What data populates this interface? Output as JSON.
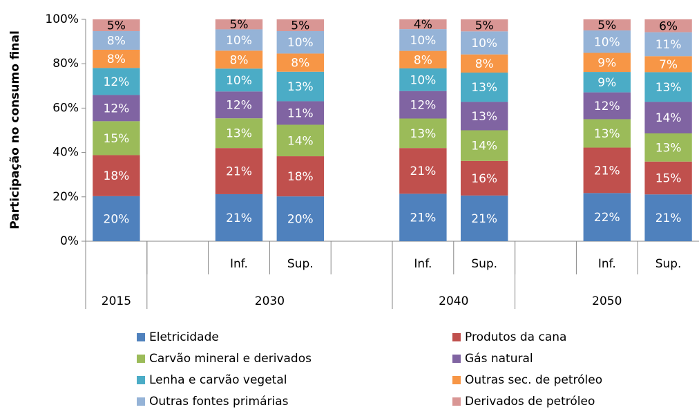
{
  "chart_data": {
    "type": "stacked_bar",
    "y_label": "Participação no consumo final",
    "ylim": [
      0,
      100
    ],
    "yticks": [
      {
        "value": 0,
        "label": "0%"
      },
      {
        "value": 20,
        "label": "20%"
      },
      {
        "value": 40,
        "label": "40%"
      },
      {
        "value": 60,
        "label": "60%"
      },
      {
        "value": 80,
        "label": "80%"
      },
      {
        "value": 100,
        "label": "100%"
      }
    ],
    "categories": [
      null,
      null,
      "Inf.",
      "Sup.",
      null,
      "Inf.",
      "Sup.",
      null,
      "Inf.",
      "Sup."
    ],
    "groups": [
      {
        "label": "2015",
        "size": 1
      },
      {
        "label": "2030",
        "size": 4
      },
      {
        "label": "2040",
        "size": 2
      },
      {
        "label": "2050",
        "size": 3
      }
    ],
    "series": [
      {
        "name": "Eletricidade",
        "color": "#4f81bd",
        "values": [
          20.3,
          null,
          21.2,
          20.2,
          null,
          21.4,
          20.6,
          null,
          21.7,
          21.1
        ],
        "value_labels": [
          "20%",
          null,
          "21%",
          "20%",
          null,
          "21%",
          "21%",
          null,
          "22%",
          "21%"
        ]
      },
      {
        "name": "Produtos da cana",
        "color": "#c0504d",
        "values": [
          18.5,
          null,
          20.8,
          18.1,
          null,
          20.6,
          15.6,
          null,
          20.5,
          14.8
        ],
        "value_labels": [
          "18%",
          null,
          "21%",
          "18%",
          null,
          "21%",
          "16%",
          null,
          "21%",
          "15%"
        ]
      },
      {
        "name": "Carvão mineral e derivados",
        "color": "#9bbb59",
        "values": [
          15.3,
          null,
          13.4,
          14.2,
          null,
          13.3,
          13.8,
          null,
          12.8,
          12.7
        ],
        "value_labels": [
          "15%",
          null,
          "13%",
          "14%",
          null,
          "13%",
          "14%",
          null,
          "13%",
          "13%"
        ]
      },
      {
        "name": "Gás natural",
        "color": "#8064a2",
        "values": [
          11.8,
          null,
          12.1,
          10.6,
          null,
          12.4,
          12.8,
          null,
          12.1,
          14.2
        ],
        "value_labels": [
          "12%",
          null,
          "12%",
          "11%",
          null,
          "12%",
          "13%",
          null,
          "12%",
          "14%"
        ]
      },
      {
        "name": "Lenha e carvão vegetal",
        "color": "#4bacc6",
        "values": [
          12.2,
          null,
          10.3,
          13.3,
          null,
          10.2,
          13.2,
          null,
          9.2,
          13.4
        ],
        "value_labels": [
          "12%",
          null,
          "10%",
          "13%",
          null,
          "10%",
          "13%",
          null,
          "9%",
          "13%"
        ]
      },
      {
        "name": "Outras sec. de petróleo",
        "color": "#f79646",
        "values": [
          8.2,
          null,
          8.1,
          8.2,
          null,
          7.9,
          8.2,
          null,
          8.6,
          7.2
        ],
        "value_labels": [
          "8%",
          null,
          "8%",
          "8%",
          null,
          "8%",
          "8%",
          null,
          "9%",
          "7%"
        ]
      },
      {
        "name": "Outras fontes primárias",
        "color": "#95b3d7",
        "values": [
          8.4,
          null,
          9.6,
          10.1,
          null,
          9.8,
          10.4,
          null,
          10.1,
          10.8
        ],
        "value_labels": [
          "8%",
          null,
          "10%",
          "10%",
          null,
          "10%",
          "10%",
          null,
          "10%",
          "11%"
        ]
      },
      {
        "name": "Derivados de petróleo",
        "color": "#d99694",
        "values": [
          5.3,
          null,
          4.5,
          5.3,
          null,
          4.4,
          5.4,
          null,
          5.0,
          5.8
        ],
        "value_labels": [
          "5%",
          null,
          "5%",
          "5%",
          null,
          "4%",
          "5%",
          null,
          "5%",
          "6%"
        ]
      }
    ]
  }
}
